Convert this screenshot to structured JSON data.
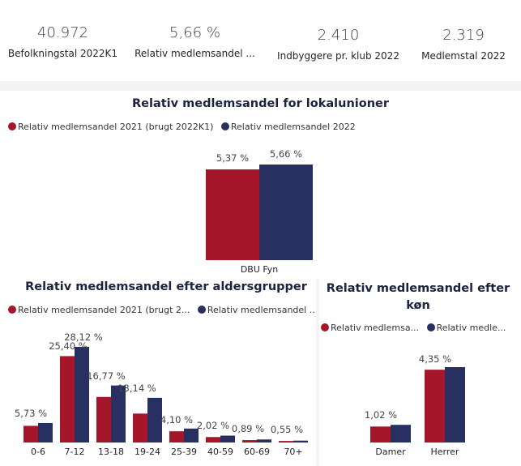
{
  "kpis": [
    {
      "value": "40.972",
      "label": "Befolkningstal 2022K1"
    },
    {
      "value": "5,66 %",
      "label": "Relativ medlemsandel ..."
    },
    {
      "value": "2.410",
      "label": "Indbyggere pr. klub 2022"
    },
    {
      "value": "2.319",
      "label": "Medlemstal 2022"
    }
  ],
  "colors": {
    "series_2021": "#a6162a",
    "series_2022": "#283061"
  },
  "chart_data": [
    {
      "type": "bar",
      "title": "Relativ medlemsandel for lokalunioner",
      "legend": [
        "Relativ medlemsandel 2021 (brugt 2022K1)",
        "Relativ medlemsandel 2022"
      ],
      "categories": [
        "DBU Fyn"
      ],
      "series": [
        {
          "name": "Relativ medlemsandel 2021 (brugt 2022K1)",
          "values": [
            5.37
          ]
        },
        {
          "name": "Relativ medlemsandel 2022",
          "values": [
            5.66
          ]
        }
      ],
      "labels": [
        "5,37 %",
        "5,66 %"
      ],
      "ylim": [
        0,
        5.66
      ]
    },
    {
      "type": "bar",
      "title": "Relativ medlemsandel efter aldersgrupper",
      "legend": [
        "Relativ medlemsandel 2021 (brugt 2...",
        "Relativ medlemsandel ..."
      ],
      "categories": [
        "0-6",
        "7-12",
        "13-18",
        "19-24",
        "25-39",
        "40-59",
        "60-69",
        "70+"
      ],
      "series": [
        {
          "name": "Relativ medlemsandel 2021 (brugt 2022K1)",
          "values": [
            4.9,
            25.4,
            13.4,
            8.5,
            3.3,
            1.6,
            0.7,
            0.45
          ]
        },
        {
          "name": "Relativ medlemsandel 2022",
          "values": [
            5.73,
            28.12,
            16.77,
            13.14,
            4.1,
            2.02,
            0.89,
            0.55
          ]
        }
      ],
      "labels": [
        "5,73 %",
        "25,40 %",
        "28,12 %",
        "16,77 %",
        "13,14 %",
        "4,10 %",
        "2,02 %",
        "0,89 %",
        "0,55 %"
      ],
      "ylim": [
        0,
        28.12
      ]
    },
    {
      "type": "bar",
      "title": "Relativ medlemsandel efter køn",
      "legend": [
        "Relativ medlemsa...",
        "Relativ medle..."
      ],
      "categories": [
        "Damer",
        "Herrer"
      ],
      "series": [
        {
          "name": "Relativ medlemsandel 2021 (brugt 2022K1)",
          "values": [
            0.92,
            4.2
          ]
        },
        {
          "name": "Relativ medlemsandel 2022",
          "values": [
            1.02,
            4.35
          ]
        }
      ],
      "labels": [
        "1,02 %",
        "4,35 %"
      ],
      "ylim": [
        0,
        4.35
      ]
    }
  ]
}
